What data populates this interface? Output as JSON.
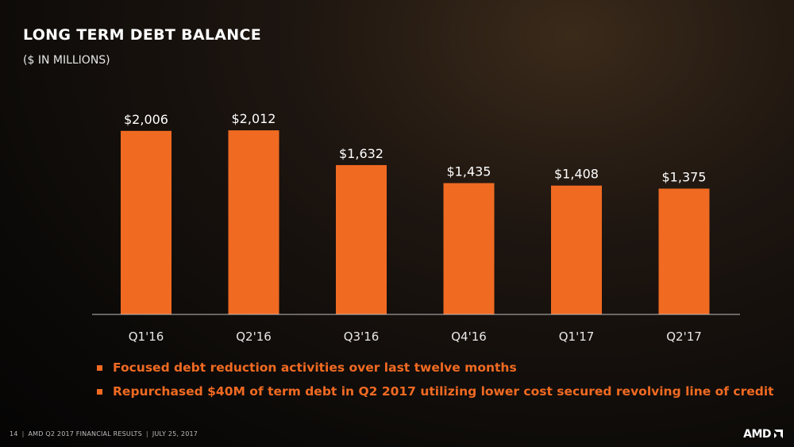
{
  "slide": {
    "title": "LONG TERM DEBT BALANCE",
    "subtitle": "($ IN MILLIONS)"
  },
  "chart_data": {
    "type": "bar",
    "categories": [
      "Q1'16",
      "Q2'16",
      "Q3'16",
      "Q4'16",
      "Q1'17",
      "Q2'17"
    ],
    "values": [
      2006,
      2012,
      1632,
      1435,
      1408,
      1375
    ],
    "value_labels": [
      "$2,006",
      "$2,012",
      "$1,632",
      "$1,435",
      "$1,408",
      "$1,375"
    ],
    "title": "LONG TERM DEBT BALANCE",
    "subtitle": "($ IN MILLIONS)",
    "xlabel": "",
    "ylabel": "",
    "ylim": [
      0,
      2100
    ],
    "grid": false,
    "legend": "none",
    "bar_color": "#f06a22"
  },
  "bullets": [
    "Focused debt reduction activities over last twelve months",
    "Repurchased $40M of term debt in Q2 2017 utilizing lower cost secured revolving line of credit"
  ],
  "footer": {
    "page_number": "14",
    "presentation": "AMD Q2 2017 FINANCIAL RESULTS",
    "date": "JULY 25, 2017"
  },
  "logo": {
    "text": "AMD",
    "icon": "amd-arrow-icon"
  },
  "colors": {
    "accent": "#f06a22",
    "text": "#ffffff",
    "background": "#0c0a08"
  }
}
